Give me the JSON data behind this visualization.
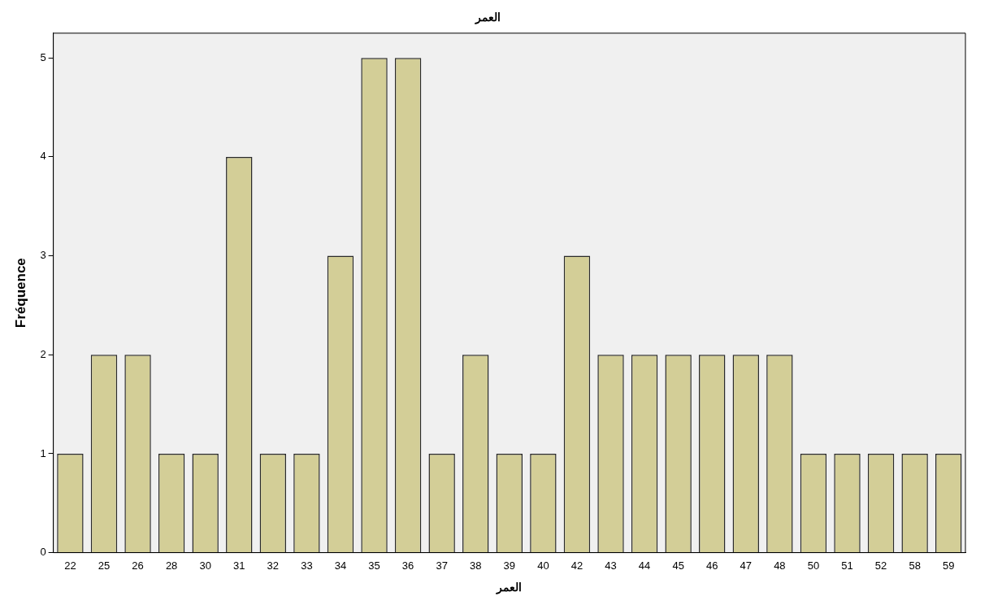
{
  "chart_data": {
    "type": "bar",
    "title": "العمر",
    "xlabel": "العمر",
    "ylabel": "Fréquence",
    "categories": [
      "22",
      "25",
      "26",
      "28",
      "30",
      "31",
      "32",
      "33",
      "34",
      "35",
      "36",
      "37",
      "38",
      "39",
      "40",
      "42",
      "43",
      "44",
      "45",
      "46",
      "47",
      "48",
      "50",
      "51",
      "52",
      "58",
      "59"
    ],
    "values": [
      1,
      2,
      2,
      1,
      1,
      4,
      1,
      1,
      3,
      5,
      5,
      1,
      2,
      1,
      1,
      3,
      2,
      2,
      2,
      2,
      2,
      2,
      1,
      1,
      1,
      1,
      1
    ],
    "color": "#d3ce97",
    "ylim": [
      0,
      5.25
    ],
    "yticks": [
      0,
      1,
      2,
      3,
      4,
      5
    ],
    "grid": false,
    "legend": false
  }
}
